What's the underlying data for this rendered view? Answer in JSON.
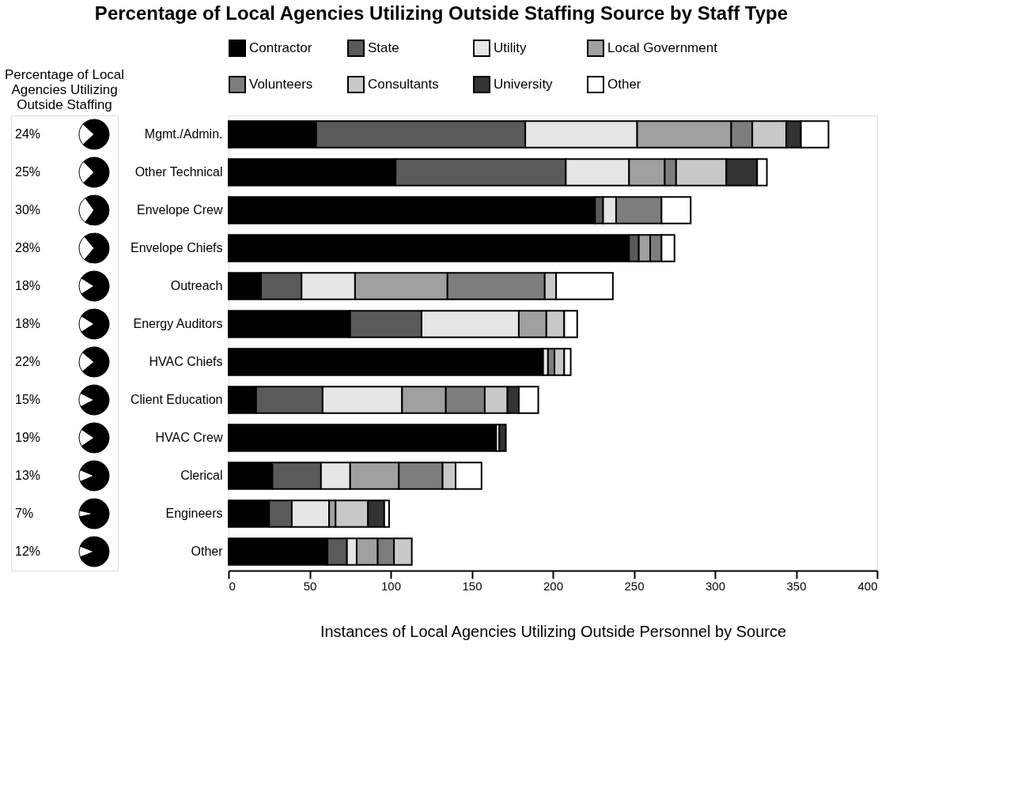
{
  "chart_data": [
    {
      "type": "other",
      "title": "Percentage of Local Agencies Utilizing Outside Staffing",
      "values": [
        24,
        25,
        30,
        28,
        18,
        18,
        22,
        15,
        19,
        13,
        7,
        12
      ],
      "value_labels": [
        "24%",
        "25%",
        "30%",
        "28%",
        "18%",
        "18%",
        "22%",
        "15%",
        "19%",
        "13%",
        "7%",
        "12%"
      ]
    },
    {
      "type": "bar",
      "orientation": "horizontal",
      "stacked": true,
      "title": "Percentage of Local Agencies Utilizing Outside Staffing Source by Staff Type",
      "xlabel": "Instances of Local Agencies Utilizing Outside Personnel by Source",
      "legend": "top",
      "grid": false,
      "categories": [
        "Mgmt./Admin.",
        "Other Technical",
        "Envelope Crew",
        "Envelope Chiefs",
        "Outreach",
        "Energy Auditors",
        "HVAC Chiefs",
        "Client Education",
        "HVAC Crew",
        "Clerical",
        "Engineers",
        "Other"
      ],
      "xlim": [
        0,
        400
      ],
      "xticks": [
        0,
        50,
        100,
        150,
        200,
        250,
        300,
        350,
        400
      ],
      "series": [
        {
          "name": "Contractor",
          "color": "#000000",
          "values": [
            54,
            103,
            226,
            247,
            20,
            75,
            194,
            17,
            165,
            27,
            25,
            61
          ]
        },
        {
          "name": "State",
          "color": "#5a5a5a",
          "values": [
            129,
            105,
            5,
            6,
            25,
            44,
            null,
            41,
            null,
            30,
            14,
            12
          ]
        },
        {
          "name": "Utility",
          "color": "#e6e6e6",
          "values": [
            69,
            39,
            8,
            null,
            33,
            60,
            3,
            49,
            2,
            18,
            23,
            6
          ]
        },
        {
          "name": "Local Government",
          "color": "#a0a0a0",
          "values": [
            58,
            22,
            null,
            7,
            57,
            17,
            null,
            27,
            null,
            30,
            4,
            13
          ]
        },
        {
          "name": "Volunteers",
          "color": "#7d7d7d",
          "values": [
            13,
            7,
            28,
            7,
            60,
            null,
            4,
            24,
            null,
            27,
            null,
            10
          ]
        },
        {
          "name": "Consultants",
          "color": "#c8c8c8",
          "values": [
            21,
            31,
            null,
            null,
            7,
            11,
            6,
            14,
            null,
            8,
            20,
            11
          ]
        },
        {
          "name": "University",
          "color": "#333333",
          "values": [
            9,
            19,
            null,
            null,
            null,
            null,
            null,
            7,
            4,
            null,
            10,
            null
          ]
        },
        {
          "name": "Other",
          "color": "#ffffff",
          "values": [
            17,
            6,
            18,
            8,
            35,
            8,
            4,
            12,
            null,
            16,
            3,
            null
          ]
        }
      ]
    }
  ]
}
